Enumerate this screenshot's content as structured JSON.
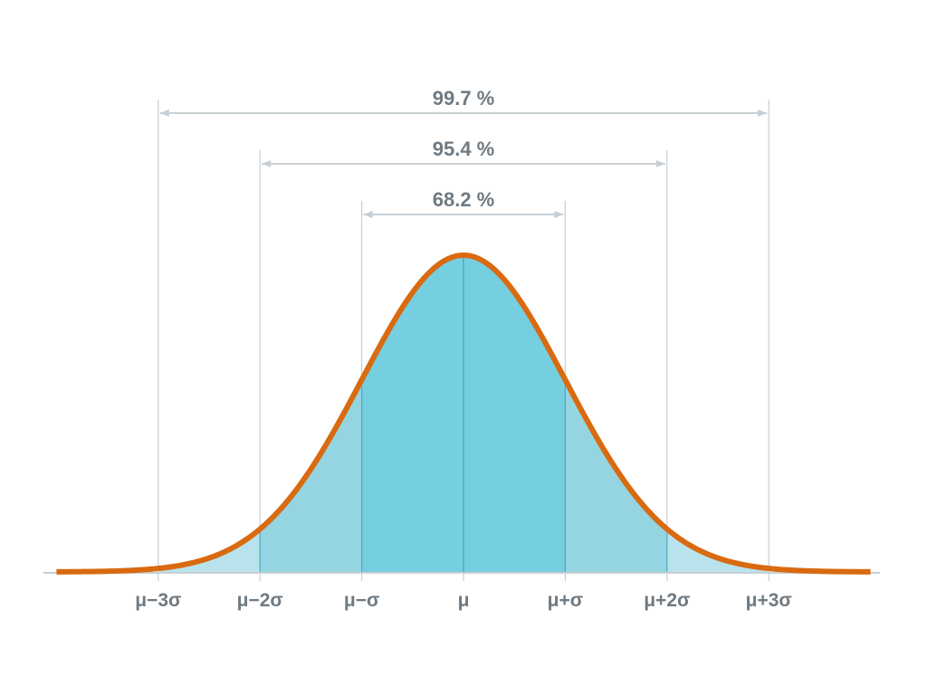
{
  "chart_data": {
    "type": "area",
    "title": "",
    "distribution": "normal",
    "x_range_sigma": [
      -4,
      4
    ],
    "tick_labels": [
      "μ−3σ",
      "μ−2σ",
      "μ−σ",
      "μ",
      "μ+σ",
      "μ+2σ",
      "μ+3σ"
    ],
    "tick_sigma": [
      -3,
      -2,
      -1,
      0,
      1,
      2,
      3
    ],
    "intervals": [
      {
        "range_sigma": [
          -3,
          3
        ],
        "label": "99.7 %"
      },
      {
        "range_sigma": [
          -2,
          2
        ],
        "label": "95.4 %"
      },
      {
        "range_sigma": [
          -1,
          1
        ],
        "label": "68.2 %"
      }
    ],
    "bands": [
      {
        "range_sigma": [
          -3,
          -2
        ],
        "color": "#b9e3ec"
      },
      {
        "range_sigma": [
          -2,
          -1
        ],
        "color": "#95d5e1"
      },
      {
        "range_sigma": [
          -1,
          1
        ],
        "color": "#75cfe0"
      },
      {
        "range_sigma": [
          1,
          2
        ],
        "color": "#95d5e1"
      },
      {
        "range_sigma": [
          2,
          3
        ],
        "color": "#b9e3ec"
      }
    ],
    "colors": {
      "curve": "#d96a10",
      "guide": "#c8cfd4",
      "text": "#6f7a82",
      "band_divider": "#4fa9bd"
    }
  }
}
